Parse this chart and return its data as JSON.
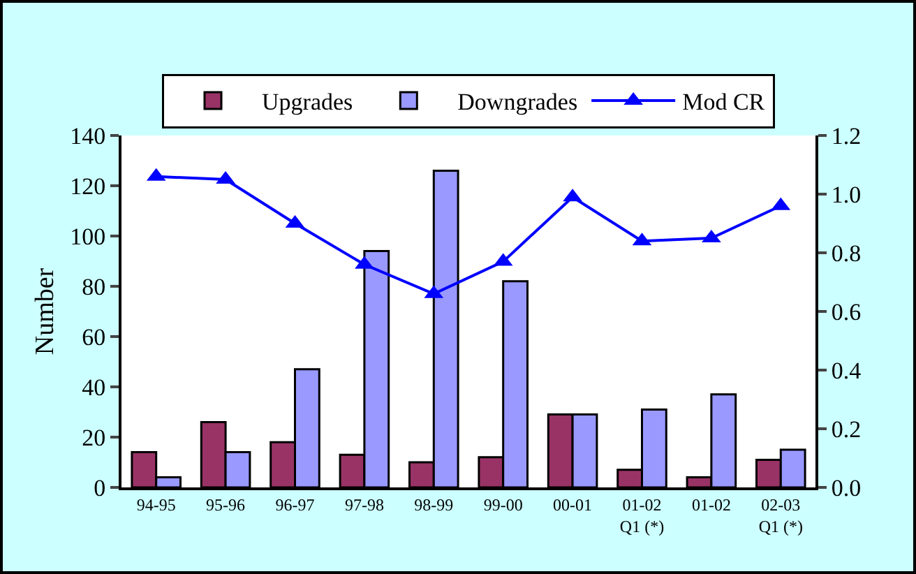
{
  "chart_data": {
    "type": "bar",
    "ylabel": "Number",
    "categories": [
      "94-95",
      "95-96",
      "96-97",
      "97-98",
      "98-99",
      "99-00",
      "00-01",
      "01-02\nQ1 (*)",
      "01-02",
      "02-03\nQ1 (*)"
    ],
    "series": [
      {
        "name": "Upgrades",
        "color": "#993366",
        "values": [
          14,
          26,
          18,
          13,
          10,
          12,
          29,
          7,
          4,
          11
        ]
      },
      {
        "name": "Downgrades",
        "color": "#9999ff",
        "values": [
          4,
          14,
          47,
          94,
          126,
          82,
          29,
          31,
          37,
          15
        ]
      },
      {
        "name": "Mod CR",
        "type": "line",
        "axis": "y2",
        "color": "#0000ff",
        "marker": "triangle",
        "values": [
          1.06,
          1.05,
          0.9,
          0.76,
          0.66,
          0.77,
          0.99,
          0.84,
          0.85,
          0.96
        ]
      }
    ],
    "ylim": [
      0,
      140
    ],
    "yticks": [
      0,
      20,
      40,
      60,
      80,
      100,
      120,
      140
    ],
    "y2lim": [
      0,
      1.2
    ],
    "y2ticks": [
      {
        "value": 0,
        "label": "0.0"
      },
      0.2,
      0.4,
      0.6,
      0.8,
      {
        "value": 1,
        "label": "1.0"
      },
      1.2
    ],
    "grid": false,
    "legend": "top"
  }
}
